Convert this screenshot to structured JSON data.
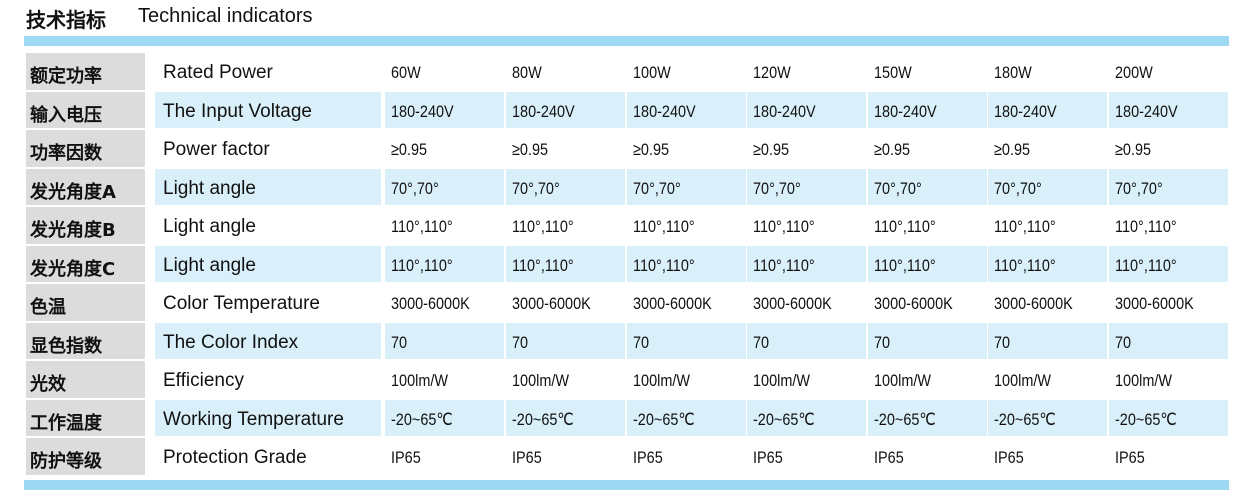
{
  "header": {
    "title_cn": "技术指标",
    "title_en": "Technical indicators"
  },
  "table": {
    "rows": [
      {
        "cn": "额定功率",
        "en": "Rated Power",
        "values": [
          "60W",
          "80W",
          "100W",
          "120W",
          "150W",
          "180W",
          "200W"
        ]
      },
      {
        "cn": "输入电压",
        "en": "The Input Voltage",
        "values": [
          "180-240V",
          "180-240V",
          "180-240V",
          "180-240V",
          "180-240V",
          "180-240V",
          "180-240V"
        ]
      },
      {
        "cn": "功率因数",
        "en": "Power factor",
        "values": [
          "≥0.95",
          "≥0.95",
          "≥0.95",
          "≥0.95",
          "≥0.95",
          "≥0.95",
          "≥0.95"
        ]
      },
      {
        "cn": "发光角度A",
        "en": "Light angle",
        "values": [
          "70°,70°",
          "70°,70°",
          "70°,70°",
          "70°,70°",
          "70°,70°",
          "70°,70°",
          "70°,70°"
        ]
      },
      {
        "cn": "发光角度B",
        "en": "Light angle",
        "values": [
          "110°,110°",
          "110°,110°",
          "110°,110°",
          "110°,110°",
          "110°,110°",
          "110°,110°",
          "110°,110°"
        ]
      },
      {
        "cn": "发光角度C",
        "en": "Light angle",
        "values": [
          "110°,110°",
          "110°,110°",
          "110°,110°",
          "110°,110°",
          "110°,110°",
          "110°,110°",
          "110°,110°"
        ]
      },
      {
        "cn": "色温",
        "en": "Color Temperature",
        "values": [
          "3000-6000K",
          "3000-6000K",
          "3000-6000K",
          "3000-6000K",
          "3000-6000K",
          "3000-6000K",
          "3000-6000K"
        ]
      },
      {
        "cn": "显色指数",
        "en": "The Color Index",
        "values": [
          "70",
          "70",
          "70",
          "70",
          "70",
          "70",
          "70"
        ]
      },
      {
        "cn": "光效",
        "en": "Efficiency",
        "values": [
          "100lm/W",
          "100lm/W",
          "100lm/W",
          "100lm/W",
          "100lm/W",
          "100lm/W",
          "100lm/W"
        ]
      },
      {
        "cn": "工作温度",
        "en": "Working Temperature",
        "values": [
          "-20~65℃",
          "-20~65℃",
          "-20~65℃",
          "-20~65℃",
          "-20~65℃",
          "-20~65℃",
          "-20~65℃"
        ]
      },
      {
        "cn": "防护等级",
        "en": "Protection Grade",
        "values": [
          "IP65",
          "IP65",
          "IP65",
          "IP65",
          "IP65",
          "IP65",
          "IP65"
        ]
      }
    ]
  }
}
